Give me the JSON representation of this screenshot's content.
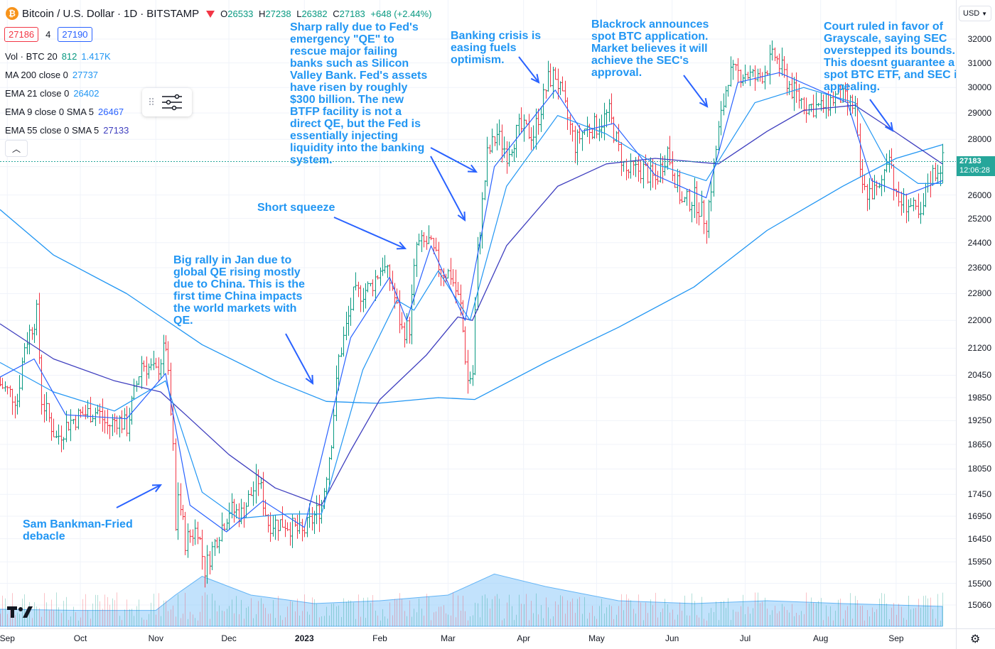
{
  "header": {
    "title": "Bitcoin / U.S. Dollar",
    "interval": "1D",
    "exchange": "BITSTAMP",
    "ohlc": {
      "o_label": "O",
      "o": "26533",
      "h_label": "H",
      "h": "27238",
      "l_label": "L",
      "l": "26382",
      "c_label": "C",
      "c": "27183",
      "change": "+648 (+2.44%)"
    },
    "bid": "27186",
    "spread": "4",
    "ask": "27190"
  },
  "indicators": [
    {
      "label": "Vol · BTC 20",
      "v1": "812",
      "v2": "1.417K",
      "c1": "#089981",
      "c2": "#2196f3"
    },
    {
      "label": "MA 200 close 0",
      "v1": "27737",
      "v2": "",
      "c1": "#2196f3",
      "c2": ""
    },
    {
      "label": "EMA 21 close 0",
      "v1": "26402",
      "v2": "",
      "c1": "#2196f3",
      "c2": ""
    },
    {
      "label": "EMA 9 close 0 SMA 5",
      "v1": "26467",
      "v2": "",
      "c1": "#2962ff",
      "c2": ""
    },
    {
      "label": "EMA 55 close 0 SMA 5",
      "v1": "27133",
      "v2": "",
      "c1": "#3f3fbf",
      "c2": ""
    }
  ],
  "currency": "USD",
  "last_price": {
    "value": "27183",
    "countdown": "12:06:28"
  },
  "colors": {
    "up": "#089981",
    "down": "#f23645",
    "ma200": "#2196f3",
    "ema21": "#2196f3",
    "ema9": "#2962ff",
    "ema55": "#3f3fbf",
    "annotation": "#2196f3",
    "volume_area": "#90caf9"
  },
  "annotations": [
    {
      "text": "Sam Bankman-Fried\ndebacle"
    },
    {
      "text": "Big rally in Jan due to\nglobal QE rising mostly\ndue to China. This is the\nfirst time China impacts\nthe world markets with\nQE."
    },
    {
      "text": "Short squeeze"
    },
    {
      "text": "Sharp rally due to Fed's\nemergency \"QE\" to\nrescue major failing\nbanks such as Silicon\nValley Bank. Fed's assets\nhave risen by roughly\n$300 billion. The new\nBTFP facility is not a\ndirect QE, but the Fed is\nessentially injecting\nliquidity into the banking\nsystem."
    },
    {
      "text": "Banking crisis is\neasing fuels\noptimism."
    },
    {
      "text": "Blackrock announces\nspot BTC application.\nMarket believes it will\nachieve the SEC's\napproval."
    },
    {
      "text": "Court ruled in favor of\nGrayscale, saying SEC\noverstepped its bounds.\nThis doesnt guarantee a\nspot BTC ETF, and SEC is\nappealing."
    }
  ],
  "chart_data": {
    "type": "bar",
    "price_scale": "log",
    "grid": true,
    "price_ticks": [
      32000,
      31000,
      30000,
      29000,
      28000,
      27000,
      26000,
      25200,
      24400,
      23600,
      22800,
      22000,
      21200,
      20450,
      19850,
      19250,
      18650,
      18050,
      17450,
      16950,
      16450,
      15950,
      15500,
      15060
    ],
    "time_ticks": [
      "Sep",
      "Oct",
      "Nov",
      "Dec",
      "2023",
      "Feb",
      "Mar",
      "Apr",
      "May",
      "Jun",
      "Jul",
      "Aug",
      "Sep"
    ],
    "time_ticks_bold": [
      "2023"
    ],
    "time_tick_dates": [
      "2022-09-01",
      "2022-10-01",
      "2022-11-01",
      "2022-12-01",
      "2023-01-01",
      "2023-02-01",
      "2023-03-01",
      "2023-04-01",
      "2023-05-01",
      "2023-06-01",
      "2023-07-01",
      "2023-08-01",
      "2023-09-01"
    ],
    "x_range": [
      "2022-08-29",
      "2023-09-20"
    ],
    "close_path": [
      [
        "2022-08-29",
        20200
      ],
      [
        "2022-09-05",
        19800
      ],
      [
        "2022-09-08",
        21300
      ],
      [
        "2022-09-13",
        22200
      ],
      [
        "2022-09-15",
        19800
      ],
      [
        "2022-09-21",
        18800
      ],
      [
        "2022-09-26",
        19200
      ],
      [
        "2022-10-01",
        19400
      ],
      [
        "2022-10-08",
        19500
      ],
      [
        "2022-10-12",
        19100
      ],
      [
        "2022-10-16",
        19300
      ],
      [
        "2022-10-20",
        19100
      ],
      [
        "2022-10-26",
        20800
      ],
      [
        "2022-11-01",
        20500
      ],
      [
        "2022-11-05",
        21300
      ],
      [
        "2022-11-08",
        18500
      ],
      [
        "2022-11-09",
        16600
      ],
      [
        "2022-11-10",
        17500
      ],
      [
        "2022-11-13",
        16400
      ],
      [
        "2022-11-18",
        16700
      ],
      [
        "2022-11-21",
        15800
      ],
      [
        "2022-11-26",
        16500
      ],
      [
        "2022-12-01",
        17100
      ],
      [
        "2022-12-06",
        17000
      ],
      [
        "2022-12-13",
        17800
      ],
      [
        "2022-12-17",
        16800
      ],
      [
        "2022-12-24",
        16800
      ],
      [
        "2022-12-31",
        16550
      ],
      [
        "2023-01-08",
        17200
      ],
      [
        "2023-01-12",
        18800
      ],
      [
        "2023-01-15",
        20900
      ],
      [
        "2023-01-21",
        22700
      ],
      [
        "2023-01-28",
        23000
      ],
      [
        "2023-02-02",
        23700
      ],
      [
        "2023-02-06",
        23000
      ],
      [
        "2023-02-10",
        21700
      ],
      [
        "2023-02-13",
        21800
      ],
      [
        "2023-02-16",
        24300
      ],
      [
        "2023-02-21",
        24400
      ],
      [
        "2023-02-26",
        23500
      ],
      [
        "2023-03-02",
        23400
      ],
      [
        "2023-03-06",
        22400
      ],
      [
        "2023-03-09",
        20300
      ],
      [
        "2023-03-11",
        20500
      ],
      [
        "2023-03-13",
        24100
      ],
      [
        "2023-03-17",
        27400
      ],
      [
        "2023-03-21",
        28200
      ],
      [
        "2023-03-25",
        27500
      ],
      [
        "2023-03-30",
        28400
      ],
      [
        "2023-04-05",
        28200
      ],
      [
        "2023-04-11",
        30300
      ],
      [
        "2023-04-14",
        30500
      ],
      [
        "2023-04-19",
        28800
      ],
      [
        "2023-04-22",
        27800
      ],
      [
        "2023-04-26",
        28400
      ],
      [
        "2023-05-01",
        28500
      ],
      [
        "2023-05-06",
        29000
      ],
      [
        "2023-05-10",
        27600
      ],
      [
        "2023-05-13",
        26800
      ],
      [
        "2023-05-20",
        26900
      ],
      [
        "2023-05-25",
        26500
      ],
      [
        "2023-05-30",
        27600
      ],
      [
        "2023-06-05",
        25700
      ],
      [
        "2023-06-10",
        25900
      ],
      [
        "2023-06-15",
        25100
      ],
      [
        "2023-06-20",
        28300
      ],
      [
        "2023-06-24",
        30500
      ],
      [
        "2023-07-01",
        30600
      ],
      [
        "2023-07-06",
        30300
      ],
      [
        "2023-07-13",
        31300
      ],
      [
        "2023-07-20",
        29900
      ],
      [
        "2023-07-26",
        29300
      ],
      [
        "2023-08-01",
        29200
      ],
      [
        "2023-08-08",
        29700
      ],
      [
        "2023-08-15",
        29200
      ],
      [
        "2023-08-17",
        26600
      ],
      [
        "2023-08-19",
        26100
      ],
      [
        "2023-08-25",
        26100
      ],
      [
        "2023-08-29",
        27700
      ],
      [
        "2023-09-01",
        25800
      ],
      [
        "2023-09-06",
        25700
      ],
      [
        "2023-09-11",
        25100
      ],
      [
        "2023-09-14",
        26500
      ],
      [
        "2023-09-20",
        27183
      ]
    ],
    "ma200": [
      [
        "2022-08-29",
        25500
      ],
      [
        "2022-09-20",
        24000
      ],
      [
        "2022-10-20",
        22800
      ],
      [
        "2022-11-20",
        21300
      ],
      [
        "2022-12-20",
        20300
      ],
      [
        "2023-01-10",
        19750
      ],
      [
        "2023-01-31",
        19700
      ],
      [
        "2023-02-25",
        19850
      ],
      [
        "2023-03-12",
        19800
      ],
      [
        "2023-04-10",
        20800
      ],
      [
        "2023-05-10",
        21800
      ],
      [
        "2023-06-10",
        23000
      ],
      [
        "2023-07-10",
        24800
      ],
      [
        "2023-08-10",
        26300
      ],
      [
        "2023-09-01",
        27300
      ],
      [
        "2023-09-20",
        27800
      ]
    ],
    "ema55": [
      [
        "2022-08-29",
        21900
      ],
      [
        "2022-09-20",
        20900
      ],
      [
        "2022-10-15",
        20300
      ],
      [
        "2022-11-03",
        20000
      ],
      [
        "2022-11-15",
        19300
      ],
      [
        "2022-12-01",
        18400
      ],
      [
        "2022-12-20",
        17600
      ],
      [
        "2023-01-08",
        17200
      ],
      [
        "2023-01-20",
        18500
      ],
      [
        "2023-02-01",
        19800
      ],
      [
        "2023-02-20",
        21000
      ],
      [
        "2023-03-05",
        22100
      ],
      [
        "2023-03-11",
        22000
      ],
      [
        "2023-03-25",
        24300
      ],
      [
        "2023-04-15",
        26300
      ],
      [
        "2023-05-05",
        27100
      ],
      [
        "2023-05-25",
        27300
      ],
      [
        "2023-06-20",
        27100
      ],
      [
        "2023-07-10",
        28300
      ],
      [
        "2023-07-25",
        29100
      ],
      [
        "2023-08-15",
        29300
      ],
      [
        "2023-08-28",
        28500
      ],
      [
        "2023-09-20",
        27100
      ]
    ],
    "ema21": [
      [
        "2022-08-29",
        20800
      ],
      [
        "2022-09-20",
        20000
      ],
      [
        "2022-10-15",
        19500
      ],
      [
        "2022-11-05",
        20300
      ],
      [
        "2022-11-20",
        17500
      ],
      [
        "2022-12-05",
        16900
      ],
      [
        "2022-12-25",
        17000
      ],
      [
        "2023-01-08",
        17000
      ],
      [
        "2023-01-25",
        20600
      ],
      [
        "2023-02-08",
        22600
      ],
      [
        "2023-02-15",
        22300
      ],
      [
        "2023-02-25",
        23500
      ],
      [
        "2023-03-10",
        22000
      ],
      [
        "2023-03-25",
        26300
      ],
      [
        "2023-04-15",
        28900
      ],
      [
        "2023-05-05",
        28200
      ],
      [
        "2023-05-25",
        27100
      ],
      [
        "2023-06-15",
        26500
      ],
      [
        "2023-07-05",
        29400
      ],
      [
        "2023-07-25",
        30000
      ],
      [
        "2023-08-15",
        29400
      ],
      [
        "2023-08-28",
        27200
      ],
      [
        "2023-09-10",
        26400
      ],
      [
        "2023-09-20",
        26400
      ]
    ],
    "ema9": [
      [
        "2022-08-29",
        20400
      ],
      [
        "2022-09-12",
        20900
      ],
      [
        "2022-09-25",
        19400
      ],
      [
        "2022-10-20",
        19300
      ],
      [
        "2022-11-05",
        20500
      ],
      [
        "2022-11-15",
        17200
      ],
      [
        "2022-11-30",
        16600
      ],
      [
        "2022-12-15",
        17300
      ],
      [
        "2023-01-01",
        16700
      ],
      [
        "2023-01-20",
        21500
      ],
      [
        "2023-02-05",
        23300
      ],
      [
        "2023-02-12",
        22000
      ],
      [
        "2023-02-22",
        24300
      ],
      [
        "2023-03-08",
        22000
      ],
      [
        "2023-03-20",
        27000
      ],
      [
        "2023-04-14",
        29900
      ],
      [
        "2023-04-25",
        28300
      ],
      [
        "2023-05-08",
        28600
      ],
      [
        "2023-05-25",
        26700
      ],
      [
        "2023-06-15",
        25900
      ],
      [
        "2023-06-28",
        30200
      ],
      [
        "2023-07-15",
        30600
      ],
      [
        "2023-08-12",
        29400
      ],
      [
        "2023-08-22",
        26500
      ],
      [
        "2023-09-05",
        26000
      ],
      [
        "2023-09-20",
        26500
      ]
    ],
    "volume_area": [
      [
        "2022-08-29",
        0.3
      ],
      [
        "2022-10-01",
        0.28
      ],
      [
        "2022-11-01",
        0.28
      ],
      [
        "2022-11-09",
        0.55
      ],
      [
        "2022-11-20",
        0.88
      ],
      [
        "2022-12-10",
        0.55
      ],
      [
        "2023-01-05",
        0.4
      ],
      [
        "2023-02-01",
        0.45
      ],
      [
        "2023-03-01",
        0.55
      ],
      [
        "2023-03-20",
        0.92
      ],
      [
        "2023-04-10",
        0.7
      ],
      [
        "2023-05-10",
        0.45
      ],
      [
        "2023-06-10",
        0.4
      ],
      [
        "2023-07-10",
        0.45
      ],
      [
        "2023-08-10",
        0.4
      ],
      [
        "2023-09-20",
        0.35
      ]
    ]
  }
}
